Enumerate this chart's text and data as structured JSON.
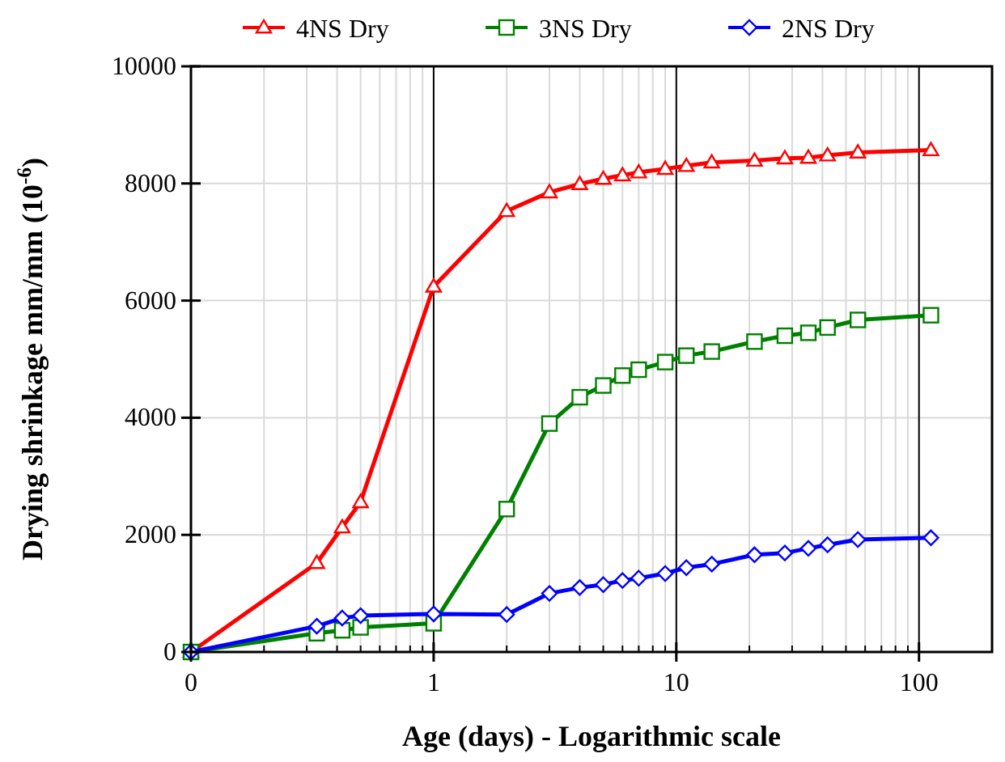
{
  "chart_data": {
    "type": "line",
    "xlabel": "Age (days) - Logarithmic scale",
    "ylabel": "Drying shrinkage mm/mm (10$^{-6}$)",
    "x": [
      0.1,
      0.33,
      0.42,
      0.5,
      1,
      2,
      3,
      4,
      5,
      6,
      7,
      9,
      11,
      14,
      21,
      28,
      35,
      42,
      56,
      112
    ],
    "log": "x",
    "xlim": [
      0.1,
      200
    ],
    "xticks": [
      {
        "value": 0.1,
        "label": "0"
      },
      1,
      10,
      100
    ],
    "ylim": [
      0,
      10000
    ],
    "yticks": [
      0,
      2000,
      4000,
      6000,
      8000,
      10000
    ],
    "grid": true,
    "legend": "top",
    "line_style": "solid",
    "series": [
      {
        "name": "4NS Dry",
        "color": "#ff0000",
        "marker": "triangle",
        "values": [
          0,
          1520,
          2130,
          2560,
          6240,
          7530,
          7850,
          7990,
          8080,
          8140,
          8190,
          8250,
          8300,
          8360,
          8390,
          8430,
          8440,
          8480,
          8530,
          8570
        ]
      },
      {
        "name": "3NS Dry",
        "color": "#008000",
        "marker": "square",
        "values": [
          0,
          320,
          370,
          420,
          490,
          2440,
          3900,
          4350,
          4550,
          4720,
          4820,
          4950,
          5060,
          5130,
          5300,
          5400,
          5450,
          5540,
          5670,
          5750
        ]
      },
      {
        "name": "2NS Dry",
        "color": "#0000ff",
        "marker": "diamond",
        "values": [
          0,
          440,
          580,
          620,
          650,
          640,
          1000,
          1100,
          1150,
          1220,
          1260,
          1340,
          1440,
          1500,
          1660,
          1690,
          1770,
          1830,
          1920,
          1950
        ]
      }
    ]
  }
}
